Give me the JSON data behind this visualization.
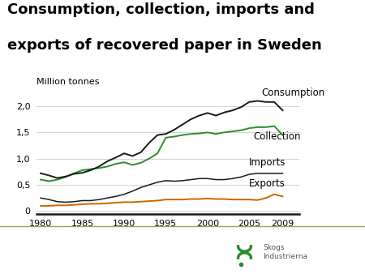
{
  "title_line1": "Consumption, collection, imports and",
  "title_line2": "exports of recovered paper in Sweden",
  "ylabel": "Million tonnes",
  "title_fontsize": 13,
  "label_fontsize": 8.5,
  "tick_fontsize": 8,
  "background_color": "#ffffff",
  "years": [
    1980,
    1981,
    1982,
    1983,
    1984,
    1985,
    1986,
    1987,
    1988,
    1989,
    1990,
    1991,
    1992,
    1993,
    1994,
    1995,
    1996,
    1997,
    1998,
    1999,
    2000,
    2001,
    2002,
    2003,
    2004,
    2005,
    2006,
    2007,
    2008,
    2009
  ],
  "consumption": [
    0.72,
    0.68,
    0.63,
    0.66,
    0.71,
    0.73,
    0.78,
    0.85,
    0.95,
    1.02,
    1.1,
    1.05,
    1.12,
    1.3,
    1.45,
    1.47,
    1.55,
    1.65,
    1.75,
    1.82,
    1.87,
    1.82,
    1.88,
    1.92,
    1.98,
    2.08,
    2.1,
    2.08,
    2.08,
    1.92
  ],
  "collection": [
    0.6,
    0.57,
    0.6,
    0.65,
    0.72,
    0.78,
    0.8,
    0.82,
    0.85,
    0.9,
    0.93,
    0.88,
    0.92,
    1.0,
    1.1,
    1.4,
    1.42,
    1.45,
    1.47,
    1.48,
    1.5,
    1.47,
    1.5,
    1.52,
    1.54,
    1.58,
    1.6,
    1.6,
    1.62,
    1.45
  ],
  "imports": [
    0.25,
    0.22,
    0.18,
    0.17,
    0.18,
    0.2,
    0.2,
    0.22,
    0.25,
    0.28,
    0.32,
    0.38,
    0.45,
    0.5,
    0.55,
    0.58,
    0.57,
    0.58,
    0.6,
    0.62,
    0.62,
    0.6,
    0.6,
    0.62,
    0.65,
    0.7,
    0.72,
    0.72,
    0.72,
    0.72
  ],
  "exports": [
    0.1,
    0.1,
    0.11,
    0.11,
    0.12,
    0.13,
    0.14,
    0.14,
    0.15,
    0.16,
    0.17,
    0.17,
    0.18,
    0.19,
    0.2,
    0.22,
    0.22,
    0.22,
    0.23,
    0.23,
    0.24,
    0.23,
    0.23,
    0.22,
    0.22,
    0.22,
    0.21,
    0.25,
    0.32,
    0.28
  ],
  "consumption_color": "#1a1a1a",
  "collection_color": "#2d8c2d",
  "imports_color": "#1a1a1a",
  "exports_color": "#cc6600",
  "grid_color": "#cccccc",
  "yticks": [
    0,
    0.5,
    1.0,
    1.5,
    2.0
  ],
  "ytick_labels": [
    "0",
    "0,5",
    "1,0",
    "1,5",
    "2,0"
  ],
  "xticks": [
    1980,
    1985,
    1990,
    1995,
    2000,
    2005,
    2009
  ],
  "ylim": [
    -0.05,
    2.3
  ],
  "xlim": [
    1979.5,
    2011.0
  ],
  "separator_color": "#8aaa5a",
  "logo_text_color": "#555555"
}
